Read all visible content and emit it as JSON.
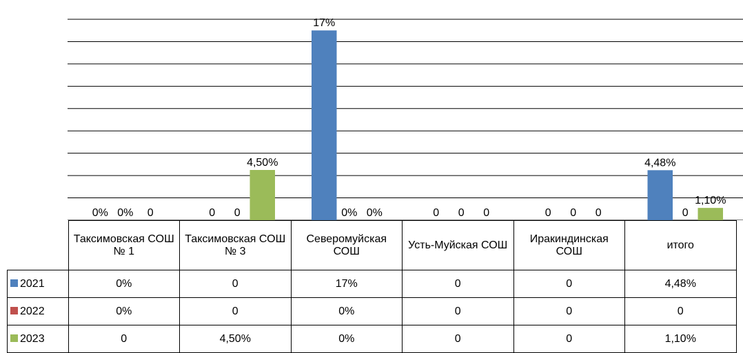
{
  "chart_data": {
    "type": "bar",
    "categories": [
      "Таксимовская СОШ № 1",
      "Таксимовская СОШ № 3",
      "Северомуйская СОШ",
      "Усть-Муйская СОШ",
      "Иракиндинская СОШ",
      "итого"
    ],
    "series": [
      {
        "name": "2021",
        "color": "#4f81bd",
        "values": [
          0,
          0,
          17,
          0,
          0,
          4.48
        ],
        "value_labels": [
          "0%",
          "0",
          "17%",
          "0",
          "0",
          "4,48%"
        ]
      },
      {
        "name": "2022",
        "color": "#c0504d",
        "values": [
          0,
          0,
          0,
          0,
          0,
          0
        ],
        "value_labels": [
          "0%",
          "0",
          "0%",
          "0",
          "0",
          "0"
        ]
      },
      {
        "name": "2023",
        "color": "#9bbb59",
        "values": [
          0,
          4.5,
          0,
          0,
          0,
          1.1
        ],
        "value_labels": [
          "0",
          "4,50%",
          "0%",
          "0",
          "0",
          "1,10%"
        ]
      }
    ],
    "ylim": [
      0,
      18
    ],
    "yticks": [
      0,
      2,
      4,
      6,
      8,
      10,
      12,
      14,
      16,
      18
    ],
    "grid": true
  }
}
